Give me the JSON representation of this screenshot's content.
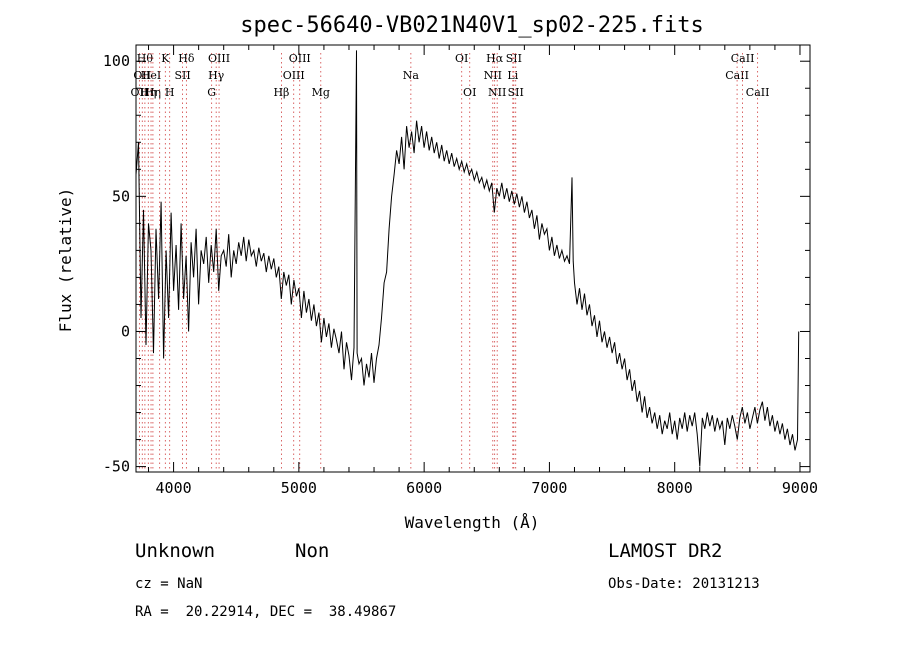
{
  "chart_data": {
    "type": "line",
    "title": "spec-56640-VB021N40V1_sp02-225.fits",
    "xlabel": "Wavelength (Å)",
    "ylabel": "Flux (relative)",
    "xlim": [
      3700,
      9080
    ],
    "ylim": [
      -52,
      106
    ],
    "x_ticks": [
      4000,
      5000,
      6000,
      7000,
      8000,
      9000
    ],
    "y_ticks": [
      -50,
      0,
      50,
      100
    ],
    "grid": false,
    "series": [
      {
        "color": "#000000",
        "points": [
          [
            3700,
            58
          ],
          [
            3720,
            70
          ],
          [
            3740,
            5
          ],
          [
            3760,
            45
          ],
          [
            3780,
            -5
          ],
          [
            3800,
            40
          ],
          [
            3820,
            30
          ],
          [
            3840,
            -8
          ],
          [
            3860,
            38
          ],
          [
            3880,
            12
          ],
          [
            3900,
            48
          ],
          [
            3920,
            -10
          ],
          [
            3940,
            30
          ],
          [
            3960,
            5
          ],
          [
            3980,
            44
          ],
          [
            4000,
            15
          ],
          [
            4020,
            32
          ],
          [
            4040,
            8
          ],
          [
            4060,
            40
          ],
          [
            4080,
            12
          ],
          [
            4100,
            28
          ],
          [
            4120,
            0
          ],
          [
            4140,
            33
          ],
          [
            4160,
            20
          ],
          [
            4180,
            38
          ],
          [
            4200,
            10
          ],
          [
            4220,
            30
          ],
          [
            4240,
            25
          ],
          [
            4260,
            35
          ],
          [
            4280,
            18
          ],
          [
            4300,
            32
          ],
          [
            4320,
            22
          ],
          [
            4340,
            38
          ],
          [
            4360,
            15
          ],
          [
            4380,
            28
          ],
          [
            4400,
            30
          ],
          [
            4420,
            24
          ],
          [
            4440,
            36
          ],
          [
            4460,
            20
          ],
          [
            4480,
            30
          ],
          [
            4500,
            25
          ],
          [
            4520,
            33
          ],
          [
            4540,
            28
          ],
          [
            4560,
            35
          ],
          [
            4580,
            26
          ],
          [
            4600,
            34
          ],
          [
            4620,
            28
          ],
          [
            4640,
            30
          ],
          [
            4660,
            24
          ],
          [
            4680,
            31
          ],
          [
            4700,
            26
          ],
          [
            4720,
            29
          ],
          [
            4740,
            22
          ],
          [
            4760,
            28
          ],
          [
            4780,
            23
          ],
          [
            4800,
            27
          ],
          [
            4820,
            20
          ],
          [
            4840,
            24
          ],
          [
            4860,
            12
          ],
          [
            4880,
            22
          ],
          [
            4900,
            17
          ],
          [
            4920,
            21
          ],
          [
            4940,
            10
          ],
          [
            4960,
            19
          ],
          [
            4980,
            13
          ],
          [
            5000,
            16
          ],
          [
            5020,
            5
          ],
          [
            5040,
            15
          ],
          [
            5060,
            7
          ],
          [
            5080,
            12
          ],
          [
            5100,
            4
          ],
          [
            5120,
            10
          ],
          [
            5140,
            2
          ],
          [
            5160,
            7
          ],
          [
            5180,
            -4
          ],
          [
            5200,
            5
          ],
          [
            5220,
            -2
          ],
          [
            5240,
            3
          ],
          [
            5260,
            -6
          ],
          [
            5280,
            1
          ],
          [
            5300,
            -3
          ],
          [
            5320,
            -8
          ],
          [
            5340,
            0
          ],
          [
            5360,
            -14
          ],
          [
            5380,
            -4
          ],
          [
            5400,
            -9
          ],
          [
            5420,
            -18
          ],
          [
            5440,
            -6
          ],
          [
            5460,
            104
          ],
          [
            5465,
            -8
          ],
          [
            5480,
            -12
          ],
          [
            5500,
            -10
          ],
          [
            5520,
            -20
          ],
          [
            5540,
            -12
          ],
          [
            5560,
            -17
          ],
          [
            5580,
            -8
          ],
          [
            5600,
            -19
          ],
          [
            5620,
            -10
          ],
          [
            5640,
            -5
          ],
          [
            5660,
            5
          ],
          [
            5680,
            18
          ],
          [
            5700,
            22
          ],
          [
            5720,
            38
          ],
          [
            5740,
            50
          ],
          [
            5760,
            58
          ],
          [
            5780,
            67
          ],
          [
            5800,
            62
          ],
          [
            5820,
            72
          ],
          [
            5840,
            60
          ],
          [
            5860,
            76
          ],
          [
            5880,
            68
          ],
          [
            5900,
            74
          ],
          [
            5920,
            66
          ],
          [
            5940,
            78
          ],
          [
            5960,
            70
          ],
          [
            5980,
            76
          ],
          [
            6000,
            68
          ],
          [
            6020,
            74
          ],
          [
            6040,
            67
          ],
          [
            6060,
            72
          ],
          [
            6080,
            66
          ],
          [
            6100,
            70
          ],
          [
            6120,
            64
          ],
          [
            6140,
            69
          ],
          [
            6160,
            63
          ],
          [
            6180,
            67
          ],
          [
            6200,
            62
          ],
          [
            6220,
            66
          ],
          [
            6240,
            61
          ],
          [
            6260,
            64
          ],
          [
            6280,
            60
          ],
          [
            6300,
            63
          ],
          [
            6320,
            59
          ],
          [
            6340,
            62
          ],
          [
            6360,
            58
          ],
          [
            6380,
            60
          ],
          [
            6400,
            56
          ],
          [
            6420,
            59
          ],
          [
            6440,
            55
          ],
          [
            6460,
            57
          ],
          [
            6480,
            53
          ],
          [
            6500,
            56
          ],
          [
            6520,
            52
          ],
          [
            6540,
            55
          ],
          [
            6560,
            44
          ],
          [
            6580,
            53
          ],
          [
            6600,
            50
          ],
          [
            6620,
            55
          ],
          [
            6640,
            49
          ],
          [
            6660,
            53
          ],
          [
            6680,
            48
          ],
          [
            6700,
            52
          ],
          [
            6720,
            47
          ],
          [
            6740,
            51
          ],
          [
            6760,
            46
          ],
          [
            6780,
            50
          ],
          [
            6800,
            44
          ],
          [
            6820,
            48
          ],
          [
            6840,
            42
          ],
          [
            6860,
            45
          ],
          [
            6880,
            38
          ],
          [
            6900,
            43
          ],
          [
            6920,
            34
          ],
          [
            6940,
            40
          ],
          [
            6960,
            36
          ],
          [
            6980,
            38
          ],
          [
            7000,
            30
          ],
          [
            7020,
            35
          ],
          [
            7040,
            28
          ],
          [
            7060,
            32
          ],
          [
            7080,
            27
          ],
          [
            7100,
            30
          ],
          [
            7120,
            26
          ],
          [
            7140,
            28
          ],
          [
            7160,
            25
          ],
          [
            7180,
            57
          ],
          [
            7190,
            26
          ],
          [
            7200,
            18
          ],
          [
            7220,
            10
          ],
          [
            7240,
            16
          ],
          [
            7260,
            8
          ],
          [
            7280,
            14
          ],
          [
            7300,
            6
          ],
          [
            7320,
            10
          ],
          [
            7340,
            2
          ],
          [
            7360,
            6
          ],
          [
            7380,
            -2
          ],
          [
            7400,
            4
          ],
          [
            7420,
            -4
          ],
          [
            7440,
            0
          ],
          [
            7460,
            -6
          ],
          [
            7480,
            -2
          ],
          [
            7500,
            -8
          ],
          [
            7520,
            -4
          ],
          [
            7540,
            -12
          ],
          [
            7560,
            -8
          ],
          [
            7580,
            -14
          ],
          [
            7600,
            -10
          ],
          [
            7620,
            -18
          ],
          [
            7640,
            -14
          ],
          [
            7660,
            -22
          ],
          [
            7680,
            -18
          ],
          [
            7700,
            -26
          ],
          [
            7720,
            -22
          ],
          [
            7740,
            -30
          ],
          [
            7760,
            -24
          ],
          [
            7780,
            -32
          ],
          [
            7800,
            -28
          ],
          [
            7820,
            -34
          ],
          [
            7840,
            -30
          ],
          [
            7860,
            -36
          ],
          [
            7880,
            -31
          ],
          [
            7900,
            -38
          ],
          [
            7920,
            -33
          ],
          [
            7940,
            -36
          ],
          [
            7960,
            -30
          ],
          [
            7980,
            -38
          ],
          [
            8000,
            -33
          ],
          [
            8020,
            -40
          ],
          [
            8040,
            -32
          ],
          [
            8060,
            -36
          ],
          [
            8080,
            -30
          ],
          [
            8100,
            -37
          ],
          [
            8120,
            -31
          ],
          [
            8140,
            -35
          ],
          [
            8160,
            -30
          ],
          [
            8180,
            -38
          ],
          [
            8200,
            -50
          ],
          [
            8220,
            -32
          ],
          [
            8240,
            -36
          ],
          [
            8260,
            -30
          ],
          [
            8280,
            -35
          ],
          [
            8300,
            -31
          ],
          [
            8320,
            -37
          ],
          [
            8340,
            -32
          ],
          [
            8360,
            -36
          ],
          [
            8380,
            -33
          ],
          [
            8400,
            -42
          ],
          [
            8420,
            -32
          ],
          [
            8440,
            -36
          ],
          [
            8460,
            -31
          ],
          [
            8480,
            -35
          ],
          [
            8500,
            -40
          ],
          [
            8520,
            -32
          ],
          [
            8540,
            -28
          ],
          [
            8560,
            -34
          ],
          [
            8580,
            -30
          ],
          [
            8600,
            -36
          ],
          [
            8620,
            -32
          ],
          [
            8640,
            -28
          ],
          [
            8660,
            -34
          ],
          [
            8680,
            -29
          ],
          [
            8700,
            -26
          ],
          [
            8720,
            -33
          ],
          [
            8740,
            -28
          ],
          [
            8760,
            -35
          ],
          [
            8780,
            -31
          ],
          [
            8800,
            -37
          ],
          [
            8820,
            -33
          ],
          [
            8840,
            -38
          ],
          [
            8860,
            -34
          ],
          [
            8880,
            -40
          ],
          [
            8900,
            -36
          ],
          [
            8920,
            -42
          ],
          [
            8940,
            -38
          ],
          [
            8960,
            -44
          ],
          [
            8980,
            -40
          ],
          [
            8990,
            0
          ]
        ]
      }
    ],
    "line_markers": [
      {
        "wave": 3727,
        "label": "OII",
        "row": 2
      },
      {
        "wave": 3750,
        "label": "OII",
        "row": 1
      },
      {
        "wave": 3771,
        "label": "Hθ",
        "row": 0
      },
      {
        "wave": 3798,
        "label": "Hη",
        "row": 2
      },
      {
        "wave": 3820,
        "label": "HeI",
        "row": 1
      },
      {
        "wave": 3835,
        "label": "Hη",
        "row": 2
      },
      {
        "wave": 3889,
        "label": "",
        "row": 1
      },
      {
        "wave": 3934,
        "label": "K",
        "row": 0
      },
      {
        "wave": 3969,
        "label": "H",
        "row": 2
      },
      {
        "wave": 4072,
        "label": "SII",
        "row": 1
      },
      {
        "wave": 4102,
        "label": "Hδ",
        "row": 0
      },
      {
        "wave": 4304,
        "label": "G",
        "row": 2
      },
      {
        "wave": 4340,
        "label": "Hγ",
        "row": 1
      },
      {
        "wave": 4363,
        "label": "OIII",
        "row": 0
      },
      {
        "wave": 4861,
        "label": "Hβ",
        "row": 2
      },
      {
        "wave": 4959,
        "label": "OIII",
        "row": 1
      },
      {
        "wave": 5007,
        "label": "OIII",
        "row": 0
      },
      {
        "wave": 5175,
        "label": "Mg",
        "row": 2
      },
      {
        "wave": 5894,
        "label": "Na",
        "row": 1
      },
      {
        "wave": 6300,
        "label": "OI",
        "row": 0
      },
      {
        "wave": 6364,
        "label": "OI",
        "row": 2
      },
      {
        "wave": 6548,
        "label": "NII",
        "row": 1
      },
      {
        "wave": 6563,
        "label": "Hα",
        "row": 0
      },
      {
        "wave": 6583,
        "label": "NII",
        "row": 2
      },
      {
        "wave": 6708,
        "label": "Li",
        "row": 1
      },
      {
        "wave": 6716,
        "label": "SII",
        "row": 0
      },
      {
        "wave": 6731,
        "label": "SII",
        "row": 2
      },
      {
        "wave": 8498,
        "label": "CaII",
        "row": 1
      },
      {
        "wave": 8542,
        "label": "CaII",
        "row": 0
      },
      {
        "wave": 8662,
        "label": "CaII",
        "row": 2
      }
    ]
  },
  "footer": {
    "class_label": "Unknown",
    "subclass_label": "Non",
    "survey": "LAMOST DR2",
    "cz": "cz = NaN",
    "obs_date": "Obs-Date: 20131213",
    "coords": "RA =  20.22914, DEC =  38.49867"
  }
}
